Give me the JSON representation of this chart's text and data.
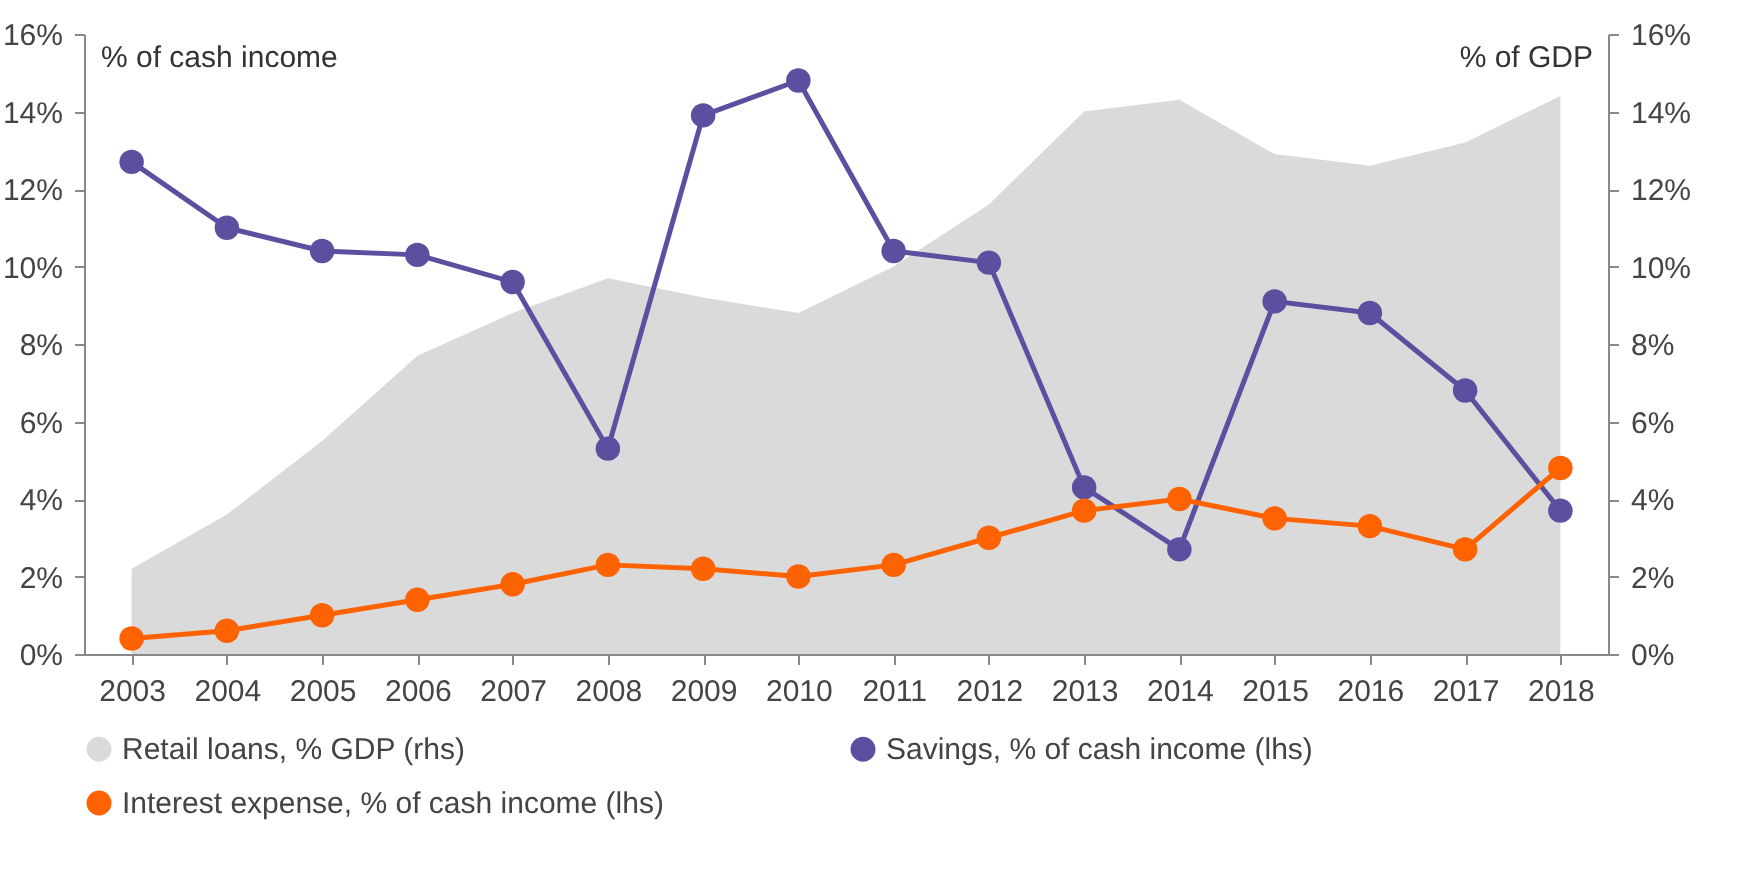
{
  "chart_data": {
    "type": "line",
    "ylabel": "% of cash income",
    "y2label": "% of GDP",
    "categories": [
      "2003",
      "2004",
      "2005",
      "2006",
      "2007",
      "2008",
      "2009",
      "2010",
      "2011",
      "2012",
      "2013",
      "2014",
      "2015",
      "2016",
      "2017",
      "2018"
    ],
    "series": [
      {
        "name": "Retail loans, % GDP (rhs)",
        "type": "area",
        "axis": "y2",
        "color": "#dadada",
        "values": [
          2.2,
          3.6,
          5.5,
          7.7,
          8.8,
          9.7,
          9.2,
          8.8,
          10.0,
          11.6,
          14.0,
          14.3,
          12.9,
          12.6,
          13.2,
          14.4
        ]
      },
      {
        "name": "Savings, % of cash income (lhs)",
        "marker": "circle",
        "color": "#5b50a0",
        "values": [
          12.7,
          11.0,
          10.4,
          10.3,
          9.6,
          5.3,
          13.9,
          14.8,
          10.4,
          10.1,
          4.3,
          2.7,
          9.1,
          8.8,
          6.8,
          3.7
        ]
      },
      {
        "name": "Interest expense, % of cash income (lhs)",
        "marker": "circle",
        "color": "#ff6200",
        "values": [
          0.4,
          0.6,
          1.0,
          1.4,
          1.8,
          2.3,
          2.2,
          2.0,
          2.3,
          3.0,
          3.7,
          4.0,
          3.5,
          3.3,
          2.7,
          4.8
        ]
      }
    ],
    "ylim": [
      0,
      16
    ],
    "yticks": [
      {
        "value": 0,
        "label": "0%"
      },
      {
        "value": 2,
        "label": "2%"
      },
      {
        "value": 4,
        "label": "4%"
      },
      {
        "value": 6,
        "label": "6%"
      },
      {
        "value": 8,
        "label": "8%"
      },
      {
        "value": 10,
        "label": "10%"
      },
      {
        "value": 12,
        "label": "12%"
      },
      {
        "value": 14,
        "label": "14%"
      },
      {
        "value": 16,
        "label": "16%"
      }
    ],
    "y2lim": [
      0,
      16
    ],
    "y2ticks": [
      {
        "value": 0,
        "label": "0%"
      },
      {
        "value": 2,
        "label": "2%"
      },
      {
        "value": 4,
        "label": "4%"
      },
      {
        "value": 6,
        "label": "6%"
      },
      {
        "value": 8,
        "label": "8%"
      },
      {
        "value": 10,
        "label": "10%"
      },
      {
        "value": 12,
        "label": "12%"
      },
      {
        "value": 14,
        "label": "14%"
      },
      {
        "value": 16,
        "label": "16%"
      }
    ],
    "grid": false,
    "legend": "bottom",
    "line_style": "solid"
  }
}
